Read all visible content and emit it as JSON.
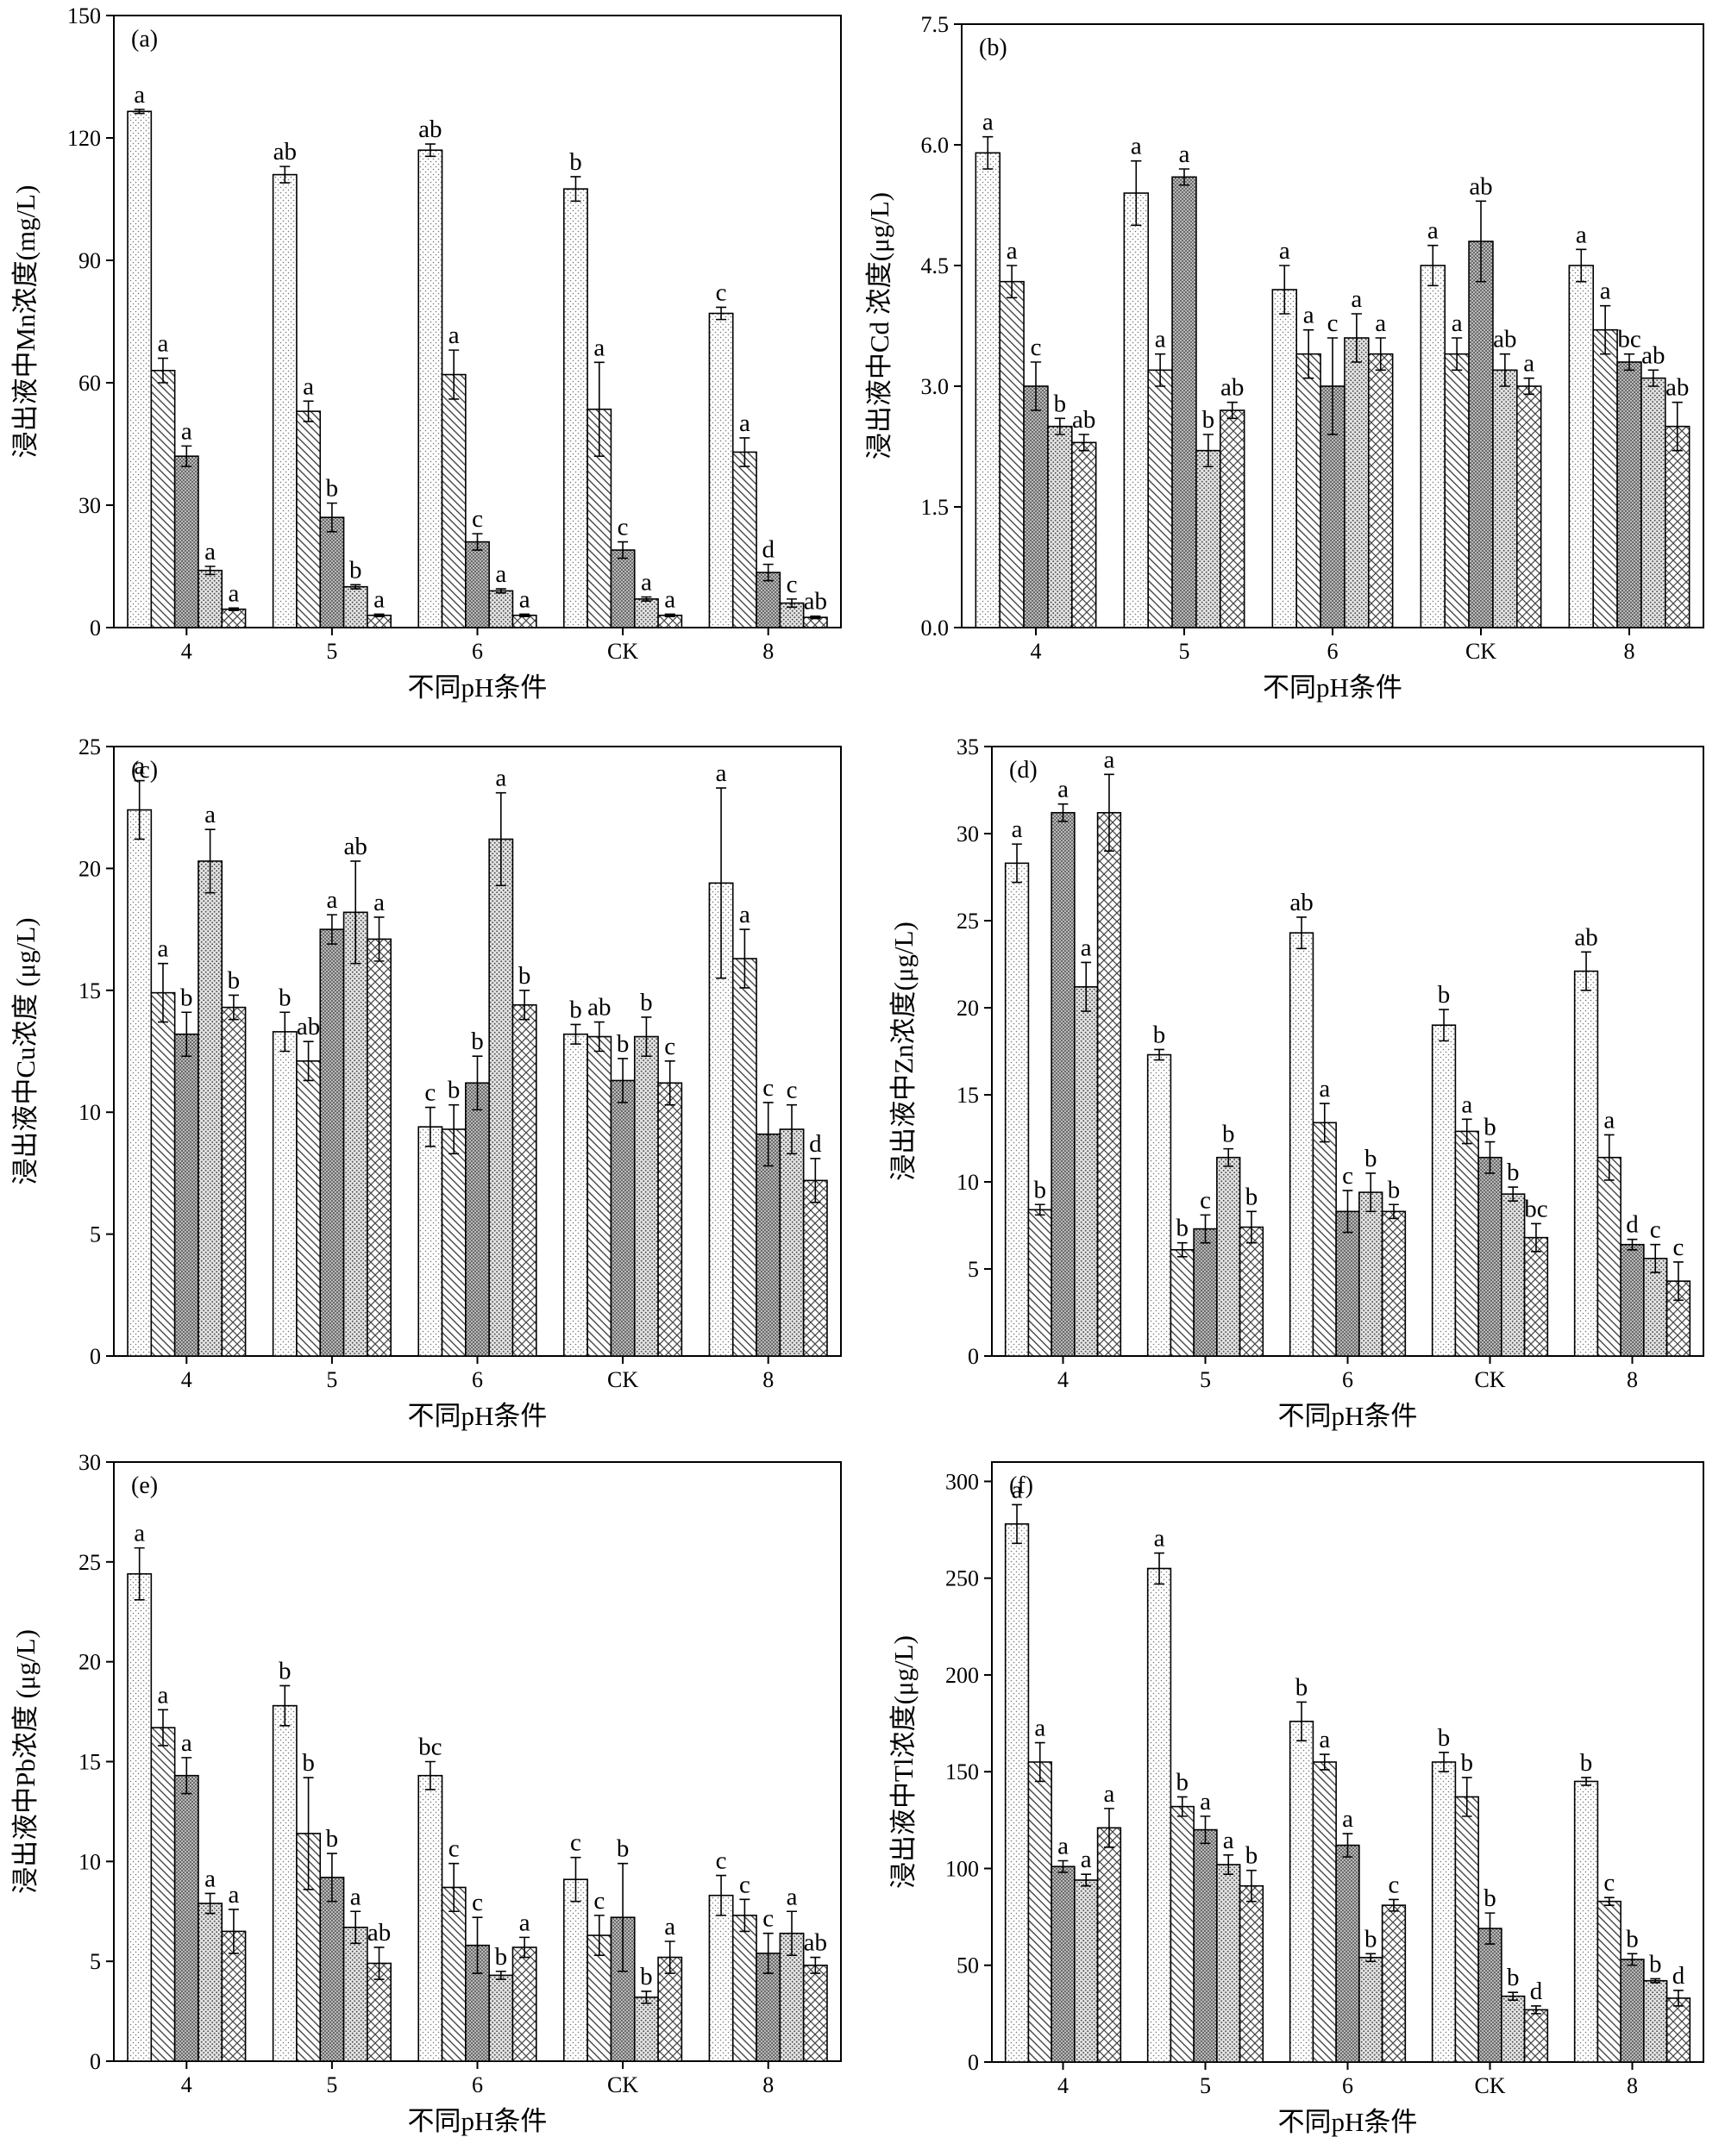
{
  "chart_data": [
    {
      "id": "a",
      "type": "bar",
      "panel_label": "(a)",
      "xlabel": "不同pH条件",
      "ylabel": "浸出液中Mn浓度(mg/L)",
      "categories": [
        "4",
        "5",
        "6",
        "CK",
        "8"
      ],
      "ylim": [
        0,
        150
      ],
      "yticks": [
        "0",
        "30",
        "60",
        "90",
        "120",
        "150"
      ],
      "series": [
        {
          "name": "s1",
          "values": [
            126.5,
            111,
            117,
            107.5,
            77
          ],
          "errors": [
            0.5,
            2,
            1.5,
            3,
            1.5
          ],
          "labels": [
            "a",
            "ab",
            "ab",
            "b",
            "c"
          ]
        },
        {
          "name": "s2",
          "values": [
            63,
            53,
            62,
            53.5,
            43
          ],
          "errors": [
            3,
            2.5,
            6,
            11.5,
            3.5
          ],
          "labels": [
            "a",
            "a",
            "a",
            "a",
            "a"
          ]
        },
        {
          "name": "s3",
          "values": [
            42,
            27,
            21,
            19,
            13.5
          ],
          "errors": [
            2.5,
            3.5,
            2,
            2,
            2
          ],
          "labels": [
            "a",
            "b",
            "c",
            "c",
            "d"
          ]
        },
        {
          "name": "s4",
          "values": [
            14,
            10,
            9,
            7,
            6
          ],
          "errors": [
            1,
            0.5,
            0.5,
            0.5,
            1
          ],
          "labels": [
            "a",
            "b",
            "a",
            "a",
            "c"
          ]
        },
        {
          "name": "s5",
          "values": [
            4.5,
            3,
            3,
            3,
            2.5
          ],
          "errors": [
            0.3,
            0.3,
            0.3,
            0.3,
            0.3
          ],
          "labels": [
            "a",
            "a",
            "a",
            "a",
            "ab"
          ]
        }
      ]
    },
    {
      "id": "b",
      "type": "bar",
      "panel_label": "(b)",
      "xlabel": "不同pH条件",
      "ylabel": "浸出液中Cd 浓度(μg/L)",
      "categories": [
        "4",
        "5",
        "6",
        "CK",
        "8"
      ],
      "ylim": [
        0,
        7.5
      ],
      "yticks": [
        "0.0",
        "1.5",
        "3.0",
        "4.5",
        "6.0",
        "7.5"
      ],
      "series": [
        {
          "name": "s1",
          "values": [
            5.9,
            5.4,
            4.2,
            4.5,
            4.5
          ],
          "errors": [
            0.2,
            0.4,
            0.3,
            0.25,
            0.2
          ],
          "labels": [
            "a",
            "a",
            "a",
            "a",
            "a"
          ]
        },
        {
          "name": "s2",
          "values": [
            4.3,
            3.2,
            3.4,
            3.4,
            3.7
          ],
          "errors": [
            0.2,
            0.2,
            0.3,
            0.2,
            0.3
          ],
          "labels": [
            "a",
            "a",
            "a",
            "a",
            "a"
          ]
        },
        {
          "name": "s3",
          "values": [
            3.0,
            5.6,
            3.0,
            4.8,
            3.3
          ],
          "errors": [
            0.3,
            0.1,
            0.6,
            0.5,
            0.1
          ],
          "labels": [
            "c",
            "a",
            "c",
            "ab",
            "bc"
          ]
        },
        {
          "name": "s4",
          "values": [
            2.5,
            2.2,
            3.6,
            3.2,
            3.1
          ],
          "errors": [
            0.1,
            0.2,
            0.3,
            0.2,
            0.1
          ],
          "labels": [
            "b",
            "b",
            "a",
            "ab",
            "ab"
          ]
        },
        {
          "name": "s5",
          "values": [
            2.3,
            2.7,
            3.4,
            3.0,
            2.5
          ],
          "errors": [
            0.1,
            0.1,
            0.2,
            0.1,
            0.3
          ],
          "labels": [
            "ab",
            "ab",
            "a",
            "a",
            "ab"
          ]
        }
      ]
    },
    {
      "id": "c",
      "type": "bar",
      "panel_label": "(c)",
      "xlabel": "不同pH条件",
      "ylabel": "浸出液中Cu浓度 (μg/L)",
      "categories": [
        "4",
        "5",
        "6",
        "CK",
        "8"
      ],
      "ylim": [
        0,
        25
      ],
      "yticks": [
        "0",
        "5",
        "10",
        "15",
        "20",
        "25"
      ],
      "series": [
        {
          "name": "s1",
          "values": [
            22.4,
            13.3,
            9.4,
            13.2,
            19.4
          ],
          "errors": [
            1.2,
            0.8,
            0.8,
            0.4,
            3.9
          ],
          "labels": [
            "a",
            "b",
            "c",
            "b",
            "a"
          ]
        },
        {
          "name": "s2",
          "values": [
            14.9,
            12.1,
            9.3,
            13.1,
            16.3
          ],
          "errors": [
            1.2,
            0.8,
            1.0,
            0.6,
            1.2
          ],
          "labels": [
            "a",
            "ab",
            "b",
            "ab",
            "a"
          ]
        },
        {
          "name": "s3",
          "values": [
            13.2,
            17.5,
            11.2,
            11.3,
            9.1
          ],
          "errors": [
            0.9,
            0.6,
            1.1,
            0.9,
            1.3
          ],
          "labels": [
            "b",
            "a",
            "b",
            "b",
            "c"
          ]
        },
        {
          "name": "s4",
          "values": [
            20.3,
            18.2,
            21.2,
            13.1,
            9.3
          ],
          "errors": [
            1.3,
            2.1,
            1.9,
            0.8,
            1.0
          ],
          "labels": [
            "a",
            "ab",
            "a",
            "b",
            "c"
          ]
        },
        {
          "name": "s5",
          "values": [
            14.3,
            17.1,
            14.4,
            11.2,
            7.2
          ],
          "errors": [
            0.5,
            0.9,
            0.6,
            0.9,
            0.9
          ],
          "labels": [
            "b",
            "a",
            "b",
            "c",
            "d"
          ]
        }
      ]
    },
    {
      "id": "d",
      "type": "bar",
      "panel_label": "(d)",
      "xlabel": "不同pH条件",
      "ylabel": "浸出液中Zn浓度(μg/L)",
      "categories": [
        "4",
        "5",
        "6",
        "CK",
        "8"
      ],
      "ylim": [
        0,
        35
      ],
      "yticks": [
        "0",
        "5",
        "10",
        "15",
        "20",
        "25",
        "30",
        "35"
      ],
      "series": [
        {
          "name": "s1",
          "values": [
            28.3,
            17.3,
            24.3,
            19.0,
            22.1
          ],
          "errors": [
            1.1,
            0.3,
            0.9,
            0.9,
            1.1
          ],
          "labels": [
            "a",
            "b",
            "ab",
            "b",
            "ab"
          ]
        },
        {
          "name": "s2",
          "values": [
            8.4,
            6.1,
            13.4,
            12.9,
            11.4
          ],
          "errors": [
            0.3,
            0.4,
            1.1,
            0.7,
            1.3
          ],
          "labels": [
            "b",
            "b",
            "a",
            "a",
            "a"
          ]
        },
        {
          "name": "s3",
          "values": [
            31.2,
            7.3,
            8.3,
            11.4,
            6.4
          ],
          "errors": [
            0.5,
            0.8,
            1.2,
            0.9,
            0.3
          ],
          "labels": [
            "a",
            "c",
            "c",
            "b",
            "d"
          ]
        },
        {
          "name": "s4",
          "values": [
            21.2,
            11.4,
            9.4,
            9.3,
            5.6
          ],
          "errors": [
            1.4,
            0.5,
            1.1,
            0.4,
            0.8
          ],
          "labels": [
            "a",
            "b",
            "b",
            "b",
            "c"
          ]
        },
        {
          "name": "s5",
          "values": [
            31.2,
            7.4,
            8.3,
            6.8,
            4.3
          ],
          "errors": [
            2.2,
            0.9,
            0.4,
            0.8,
            1.1
          ],
          "labels": [
            "a",
            "b",
            "b",
            "bc",
            "c"
          ]
        }
      ]
    },
    {
      "id": "e",
      "type": "bar",
      "panel_label": "(e)",
      "xlabel": "不同pH条件",
      "ylabel": "浸出液中Pb浓度 (μg/L)",
      "categories": [
        "4",
        "5",
        "6",
        "CK",
        "8"
      ],
      "ylim": [
        0,
        30
      ],
      "yticks": [
        "0",
        "5",
        "10",
        "15",
        "20",
        "25",
        "30"
      ],
      "series": [
        {
          "name": "s1",
          "values": [
            24.4,
            17.8,
            14.3,
            9.1,
            8.3
          ],
          "errors": [
            1.3,
            1.0,
            0.7,
            1.1,
            1.0
          ],
          "labels": [
            "a",
            "b",
            "bc",
            "c",
            "c"
          ]
        },
        {
          "name": "s2",
          "values": [
            16.7,
            11.4,
            8.7,
            6.3,
            7.3
          ],
          "errors": [
            0.9,
            2.8,
            1.2,
            1.0,
            0.8
          ],
          "labels": [
            "a",
            "b",
            "c",
            "c",
            "c"
          ]
        },
        {
          "name": "s3",
          "values": [
            14.3,
            9.2,
            5.8,
            7.2,
            5.4
          ],
          "errors": [
            0.9,
            1.2,
            1.4,
            2.7,
            1.0
          ],
          "labels": [
            "a",
            "b",
            "c",
            "b",
            "c"
          ]
        },
        {
          "name": "s4",
          "values": [
            7.9,
            6.7,
            4.3,
            3.2,
            6.4
          ],
          "errors": [
            0.5,
            0.8,
            0.2,
            0.3,
            1.1
          ],
          "labels": [
            "a",
            "a",
            "b",
            "b",
            "a"
          ]
        },
        {
          "name": "s5",
          "values": [
            6.5,
            4.9,
            5.7,
            5.2,
            4.8
          ],
          "errors": [
            1.1,
            0.8,
            0.5,
            0.8,
            0.4
          ],
          "labels": [
            "a",
            "ab",
            "a",
            "a",
            "ab"
          ]
        }
      ]
    },
    {
      "id": "f",
      "type": "bar",
      "panel_label": "(f)",
      "xlabel": "不同pH条件",
      "ylabel": "浸出液中Tl浓度(μg/L)",
      "categories": [
        "4",
        "5",
        "6",
        "CK",
        "8"
      ],
      "ylim": [
        0,
        310
      ],
      "yticks": [
        "0",
        "50",
        "100",
        "150",
        "200",
        "250",
        "300"
      ],
      "series": [
        {
          "name": "s1",
          "values": [
            278,
            255,
            176,
            155,
            145
          ],
          "errors": [
            10,
            8,
            10,
            5,
            2
          ],
          "labels": [
            "a",
            "a",
            "b",
            "b",
            "b"
          ]
        },
        {
          "name": "s2",
          "values": [
            155,
            132,
            155,
            137,
            83
          ],
          "errors": [
            10,
            5,
            4,
            10,
            2
          ],
          "labels": [
            "a",
            "b",
            "a",
            "b",
            "c"
          ]
        },
        {
          "name": "s3",
          "values": [
            101,
            120,
            112,
            69,
            53
          ],
          "errors": [
            3,
            7,
            6,
            8,
            3
          ],
          "labels": [
            "a",
            "a",
            "a",
            "b",
            "b"
          ]
        },
        {
          "name": "s4",
          "values": [
            94,
            102,
            54,
            34,
            42
          ],
          "errors": [
            3,
            5,
            2,
            2,
            1
          ],
          "labels": [
            "a",
            "a",
            "b",
            "b",
            "b"
          ]
        },
        {
          "name": "s5",
          "values": [
            121,
            91,
            81,
            27,
            33
          ],
          "errors": [
            10,
            8,
            3,
            2,
            4
          ],
          "labels": [
            "a",
            "b",
            "c",
            "d",
            "d"
          ]
        }
      ]
    }
  ]
}
